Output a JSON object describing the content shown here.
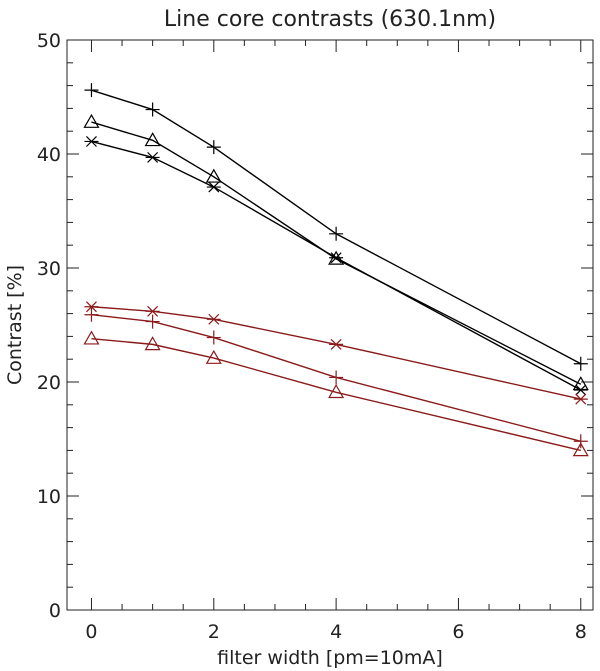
{
  "chart_data": {
    "type": "line",
    "title": "Line core contrasts (630.1nm)",
    "xlabel": "filter width [pm=10mA]",
    "ylabel": "Contrast [%]",
    "xlim": [
      -0.4,
      8.2
    ],
    "ylim": [
      0,
      50
    ],
    "xticks": [
      0,
      2,
      4,
      6,
      8
    ],
    "yticks": [
      0,
      10,
      20,
      30,
      40,
      50
    ],
    "grid": false,
    "x": [
      0,
      1,
      2,
      4,
      8
    ],
    "series": [
      {
        "marker": "plus",
        "color": "#000000",
        "values": [
          45.6,
          43.9,
          40.6,
          33.0,
          21.6
        ]
      },
      {
        "marker": "triangle",
        "color": "#000000",
        "values": [
          42.8,
          41.2,
          38.0,
          30.8,
          19.8
        ]
      },
      {
        "marker": "asterisk",
        "color": "#000000",
        "values": [
          41.1,
          39.7,
          37.1,
          30.9,
          19.3
        ]
      },
      {
        "marker": "asterisk",
        "color": "#8b1a1a",
        "values": [
          26.6,
          26.2,
          25.5,
          23.3,
          18.5
        ]
      },
      {
        "marker": "plus",
        "color": "#8b1a1a",
        "values": [
          25.9,
          25.3,
          23.9,
          20.4,
          14.8
        ]
      },
      {
        "marker": "triangle",
        "color": "#8b1a1a",
        "values": [
          23.8,
          23.3,
          22.1,
          19.1,
          14.0
        ]
      }
    ]
  }
}
